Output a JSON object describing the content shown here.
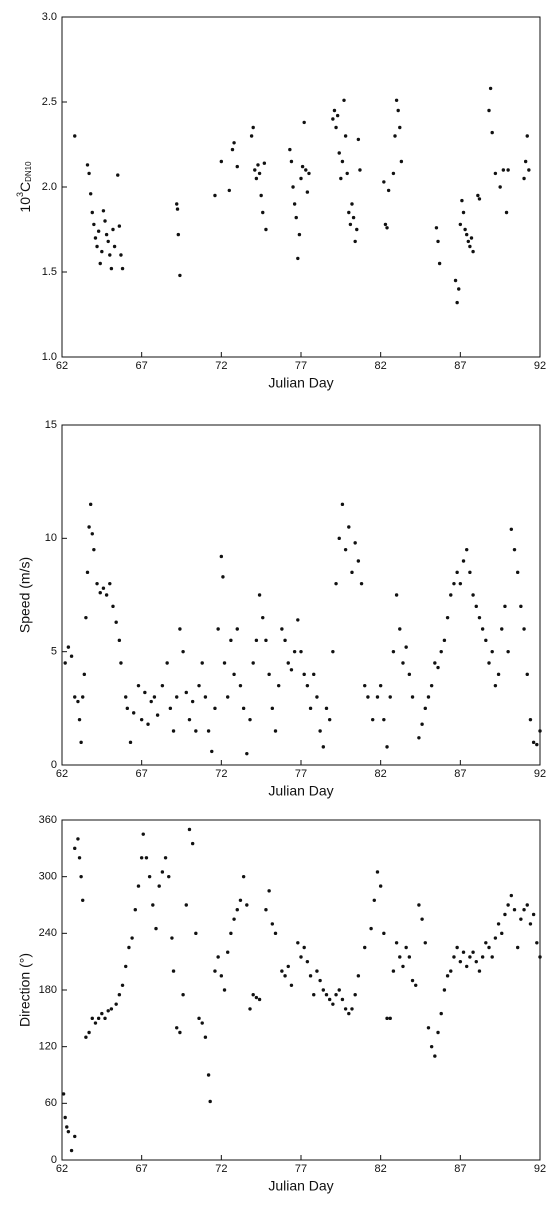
{
  "chart_data": [
    {
      "type": "scatter",
      "y_label": {
        "base": "10",
        "sup": "3",
        "main": "C",
        "sub": "DN10"
      },
      "x_label": "Julian Day",
      "color": "#111111",
      "xlim": [
        62,
        92
      ],
      "xticks": [
        62,
        67,
        72,
        77,
        82,
        87,
        92
      ],
      "ylim": [
        1,
        3
      ],
      "yticks": [
        {
          "value": 1,
          "label": "1.0"
        },
        1.5,
        {
          "value": 2,
          "label": "2.0"
        },
        2.5,
        {
          "value": 3,
          "label": "3.0"
        }
      ],
      "x": [
        62.8,
        63.6,
        63.7,
        63.8,
        63.9,
        64.0,
        64.1,
        64.2,
        64.3,
        64.4,
        64.5,
        64.6,
        64.7,
        64.8,
        64.9,
        65.0,
        65.1,
        65.2,
        65.3,
        65.5,
        65.6,
        65.7,
        65.8,
        69.2,
        69.25,
        69.3,
        69.4,
        71.6,
        72.0,
        72.5,
        72.7,
        72.8,
        73.0,
        73.9,
        74.0,
        74.1,
        74.2,
        74.3,
        74.4,
        74.5,
        74.6,
        74.7,
        74.8,
        76.3,
        76.4,
        76.5,
        76.6,
        76.7,
        76.8,
        76.9,
        77.0,
        77.1,
        77.2,
        77.3,
        77.4,
        77.5,
        79.0,
        79.1,
        79.2,
        79.3,
        79.4,
        79.5,
        79.6,
        79.7,
        79.8,
        79.9,
        80.0,
        80.1,
        80.2,
        80.3,
        80.4,
        80.5,
        80.6,
        80.7,
        82.2,
        82.3,
        82.4,
        82.5,
        82.8,
        82.9,
        83.0,
        83.1,
        83.2,
        83.3,
        85.5,
        85.6,
        85.7,
        86.7,
        86.8,
        86.9,
        87.0,
        87.1,
        87.2,
        87.3,
        87.4,
        87.5,
        87.6,
        87.7,
        87.8,
        88.1,
        88.2,
        88.8,
        88.9,
        89.0,
        89.2,
        89.5,
        89.7,
        89.9,
        90.0,
        91.0,
        91.1,
        91.2,
        91.3
      ],
      "values": [
        2.3,
        2.13,
        2.08,
        1.96,
        1.85,
        1.78,
        1.7,
        1.65,
        1.74,
        1.55,
        1.62,
        1.86,
        1.8,
        1.72,
        1.68,
        1.6,
        1.52,
        1.75,
        1.65,
        2.07,
        1.77,
        1.6,
        1.52,
        1.9,
        1.87,
        1.72,
        1.48,
        1.95,
        2.15,
        1.98,
        2.22,
        2.26,
        2.12,
        2.3,
        2.35,
        2.1,
        2.05,
        2.13,
        2.08,
        1.95,
        1.85,
        2.14,
        1.75,
        2.22,
        2.15,
        2.0,
        1.9,
        1.82,
        1.58,
        1.72,
        2.05,
        2.12,
        2.38,
        2.1,
        1.97,
        2.08,
        2.4,
        2.45,
        2.35,
        2.42,
        2.2,
        2.05,
        2.15,
        2.51,
        2.3,
        2.08,
        1.85,
        1.78,
        1.9,
        1.82,
        1.68,
        1.75,
        2.28,
        2.1,
        2.03,
        1.78,
        1.76,
        1.98,
        2.08,
        2.3,
        2.51,
        2.45,
        2.35,
        2.15,
        1.76,
        1.68,
        1.55,
        1.45,
        1.32,
        1.4,
        1.78,
        1.92,
        1.85,
        1.75,
        1.72,
        1.68,
        1.65,
        1.7,
        1.62,
        1.95,
        1.93,
        2.45,
        2.58,
        2.32,
        2.08,
        2.0,
        2.1,
        1.85,
        2.1,
        2.05,
        2.15,
        2.3,
        2.1
      ]
    },
    {
      "type": "scatter",
      "y_label": "Speed (m/s)",
      "x_label": "Julian Day",
      "color": "#111111",
      "xlim": [
        62,
        92
      ],
      "xticks": [
        62,
        67,
        72,
        77,
        82,
        87,
        92
      ],
      "ylim": [
        0,
        15
      ],
      "yticks": [
        0,
        5,
        10,
        15
      ],
      "x": [
        62.2,
        62.4,
        62.6,
        62.8,
        63.0,
        63.1,
        63.2,
        63.3,
        63.4,
        63.5,
        63.6,
        63.7,
        63.8,
        63.9,
        64.0,
        64.2,
        64.4,
        64.6,
        64.8,
        65.0,
        65.2,
        65.4,
        65.6,
        65.7,
        66.0,
        66.1,
        66.3,
        66.5,
        66.8,
        67.0,
        67.2,
        67.4,
        67.6,
        67.8,
        68.0,
        68.3,
        68.6,
        68.8,
        69.0,
        69.2,
        69.4,
        69.6,
        69.8,
        70.0,
        70.2,
        70.4,
        70.6,
        70.8,
        71.0,
        71.2,
        71.4,
        71.6,
        71.8,
        72.0,
        72.1,
        72.2,
        72.4,
        72.6,
        72.8,
        73.0,
        73.2,
        73.4,
        73.6,
        73.8,
        74.0,
        74.2,
        74.4,
        74.6,
        74.8,
        75.0,
        75.2,
        75.4,
        75.6,
        75.8,
        76.0,
        76.2,
        76.4,
        76.6,
        76.8,
        77.0,
        77.2,
        77.4,
        77.6,
        77.8,
        78.0,
        78.2,
        78.4,
        78.6,
        78.8,
        79.0,
        79.2,
        79.4,
        79.6,
        79.8,
        80.0,
        80.2,
        80.4,
        80.6,
        80.8,
        81.0,
        81.2,
        81.5,
        81.8,
        82.0,
        82.2,
        82.4,
        82.6,
        82.8,
        83.0,
        83.2,
        83.4,
        83.6,
        83.8,
        84.0,
        84.4,
        84.6,
        84.8,
        85.0,
        85.2,
        85.4,
        85.6,
        85.8,
        86.0,
        86.2,
        86.4,
        86.6,
        86.8,
        87.0,
        87.2,
        87.4,
        87.6,
        87.8,
        88.0,
        88.2,
        88.4,
        88.6,
        88.8,
        89.0,
        89.2,
        89.4,
        89.6,
        89.8,
        90.0,
        90.2,
        90.4,
        90.6,
        90.8,
        91.0,
        91.2,
        91.4,
        91.6,
        91.8,
        92.0
      ],
      "values": [
        4.5,
        5.2,
        4.8,
        3.0,
        2.8,
        2.0,
        1.0,
        3.0,
        4.0,
        6.5,
        8.5,
        10.5,
        11.5,
        10.2,
        9.5,
        8.0,
        7.6,
        7.8,
        7.5,
        8.0,
        7.0,
        6.3,
        5.5,
        4.5,
        3.0,
        2.5,
        1.0,
        2.3,
        3.5,
        2.0,
        3.2,
        1.8,
        2.8,
        3.0,
        2.2,
        3.5,
        4.5,
        2.5,
        1.5,
        3.0,
        6.0,
        5.0,
        3.2,
        2.0,
        2.8,
        1.5,
        3.5,
        4.5,
        3.0,
        1.5,
        0.6,
        2.5,
        6.0,
        9.2,
        8.3,
        4.5,
        3.0,
        5.5,
        4.0,
        6.0,
        3.5,
        2.5,
        0.5,
        2.0,
        4.5,
        5.5,
        7.5,
        6.5,
        5.5,
        4.0,
        2.5,
        1.5,
        3.5,
        6.0,
        5.5,
        4.5,
        4.2,
        5.0,
        6.4,
        5.0,
        4.0,
        3.5,
        2.5,
        4.0,
        3.0,
        1.5,
        0.8,
        2.5,
        2.0,
        5.0,
        8.0,
        10.0,
        11.5,
        9.5,
        10.5,
        8.5,
        9.8,
        9.0,
        8.0,
        3.5,
        3.0,
        2.0,
        3.0,
        3.5,
        2.0,
        0.8,
        3.0,
        5.0,
        7.5,
        6.0,
        4.5,
        5.2,
        4.0,
        3.0,
        1.2,
        1.8,
        2.5,
        3.0,
        3.5,
        4.5,
        4.3,
        5.0,
        5.5,
        6.5,
        7.5,
        8.0,
        8.5,
        8.0,
        9.0,
        9.5,
        8.5,
        7.5,
        7.0,
        6.5,
        6.0,
        5.5,
        4.5,
        5.0,
        3.5,
        4.0,
        6.0,
        7.0,
        5.0,
        10.4,
        9.5,
        8.5,
        7.0,
        6.0,
        4.0,
        2.0,
        1.0,
        0.9,
        1.5
      ]
    },
    {
      "type": "scatter",
      "y_label": "Direction (°)",
      "x_label": "Julian Day",
      "color": "#111111",
      "xlim": [
        62,
        92
      ],
      "xticks": [
        62,
        67,
        72,
        77,
        82,
        87,
        92
      ],
      "ylim": [
        0,
        360
      ],
      "yticks": [
        0,
        60,
        120,
        180,
        240,
        300,
        360
      ],
      "x": [
        62.1,
        62.2,
        62.3,
        62.4,
        62.6,
        62.8,
        62.8,
        63.0,
        63.1,
        63.2,
        63.3,
        63.5,
        63.7,
        63.9,
        64.1,
        64.3,
        64.5,
        64.7,
        64.9,
        65.1,
        65.4,
        65.6,
        65.8,
        66.0,
        66.2,
        66.4,
        66.6,
        66.8,
        67.0,
        67.1,
        67.3,
        67.5,
        67.7,
        67.9,
        68.1,
        68.3,
        68.5,
        68.7,
        68.9,
        69.0,
        69.2,
        69.4,
        69.6,
        69.8,
        70.0,
        70.2,
        70.4,
        70.6,
        70.8,
        71.0,
        71.2,
        71.3,
        71.6,
        71.8,
        72.0,
        72.2,
        72.4,
        72.6,
        72.8,
        73.0,
        73.2,
        73.4,
        73.6,
        73.8,
        74.0,
        74.2,
        74.4,
        74.8,
        75.0,
        75.2,
        75.4,
        75.8,
        76.0,
        76.2,
        76.4,
        76.8,
        77.0,
        77.2,
        77.4,
        77.6,
        77.8,
        78.0,
        78.2,
        78.4,
        78.6,
        78.8,
        79.0,
        79.2,
        79.4,
        79.6,
        79.8,
        80.0,
        80.2,
        80.4,
        80.6,
        81.0,
        81.4,
        81.6,
        81.8,
        82.0,
        82.2,
        82.4,
        82.6,
        82.8,
        83.0,
        83.2,
        83.4,
        83.6,
        83.8,
        84.0,
        84.2,
        84.4,
        84.6,
        84.8,
        85.0,
        85.2,
        85.4,
        85.6,
        85.8,
        86.0,
        86.2,
        86.4,
        86.6,
        86.8,
        87.0,
        87.2,
        87.4,
        87.6,
        87.8,
        88.0,
        88.2,
        88.4,
        88.6,
        88.8,
        89.0,
        89.2,
        89.4,
        89.6,
        89.8,
        90.0,
        90.2,
        90.4,
        90.6,
        90.8,
        91.0,
        91.2,
        91.4,
        91.6,
        91.8,
        92.0
      ],
      "values": [
        70,
        45,
        35,
        30,
        10,
        25,
        330,
        340,
        320,
        300,
        275,
        130,
        135,
        150,
        145,
        150,
        155,
        150,
        158,
        160,
        165,
        175,
        185,
        205,
        225,
        235,
        265,
        290,
        320,
        345,
        320,
        300,
        270,
        245,
        290,
        305,
        320,
        300,
        235,
        200,
        140,
        135,
        175,
        270,
        350,
        335,
        240,
        150,
        145,
        130,
        90,
        62,
        200,
        215,
        195,
        180,
        220,
        240,
        255,
        265,
        275,
        300,
        270,
        160,
        175,
        172,
        170,
        265,
        285,
        250,
        240,
        200,
        195,
        205,
        185,
        230,
        215,
        225,
        210,
        195,
        175,
        200,
        190,
        180,
        175,
        170,
        165,
        175,
        180,
        170,
        160,
        155,
        160,
        175,
        195,
        225,
        245,
        275,
        305,
        290,
        240,
        150,
        150,
        200,
        230,
        215,
        205,
        225,
        215,
        190,
        185,
        270,
        255,
        230,
        140,
        120,
        110,
        135,
        155,
        180,
        195,
        200,
        215,
        225,
        210,
        220,
        205,
        215,
        220,
        210,
        200,
        215,
        230,
        225,
        215,
        235,
        250,
        240,
        260,
        270,
        280,
        265,
        225,
        255,
        265,
        270,
        250,
        260,
        230,
        215
      ]
    }
  ]
}
